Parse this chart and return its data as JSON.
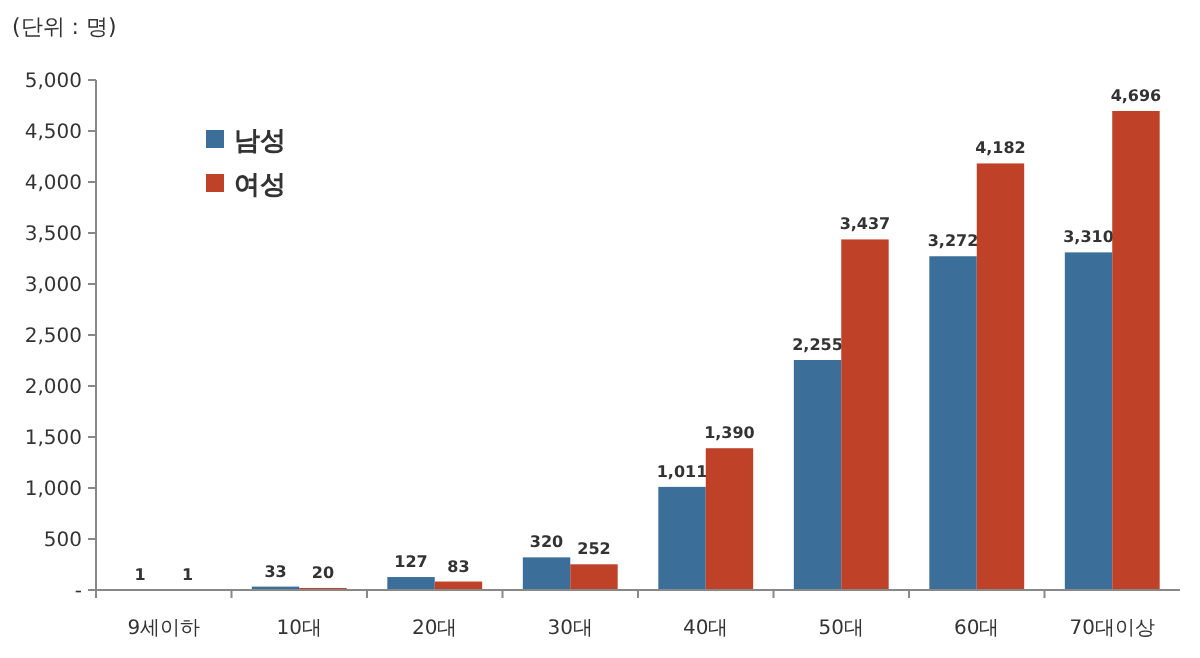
{
  "chart_data": {
    "type": "bar",
    "categories": [
      "9세이하",
      "10대",
      "20대",
      "30대",
      "40대",
      "50대",
      "60대",
      "70대이상"
    ],
    "series": [
      {
        "name": "남성",
        "color": "#3b6e98",
        "values": [
          1,
          33,
          127,
          320,
          1011,
          2255,
          3272,
          3310
        ],
        "value_labels": [
          "1",
          "33",
          "127",
          "320",
          "1,011",
          "2,255",
          "3,272",
          "3,310"
        ]
      },
      {
        "name": "여성",
        "color": "#be4128",
        "values": [
          1,
          20,
          83,
          252,
          1390,
          3437,
          4182,
          4696
        ],
        "value_labels": [
          "1",
          "20",
          "83",
          "252",
          "1,390",
          "3,437",
          "4,182",
          "4,696"
        ]
      }
    ],
    "ylim": [
      0,
      5000
    ],
    "yticks": [
      {
        "value": 0,
        "label": "-"
      },
      {
        "value": 500,
        "label": "500"
      },
      {
        "value": 1000,
        "label": "1,000"
      },
      {
        "value": 1500,
        "label": "1,500"
      },
      {
        "value": 2000,
        "label": "2,000"
      },
      {
        "value": 2500,
        "label": "2,500"
      },
      {
        "value": 3000,
        "label": "3,000"
      },
      {
        "value": 3500,
        "label": "3,500"
      },
      {
        "value": 4000,
        "label": "4,000"
      },
      {
        "value": 4500,
        "label": "4,500"
      },
      {
        "value": 5000,
        "label": "5,000"
      }
    ],
    "annotations": [
      "(단위 : 명)"
    ],
    "legend": "top left",
    "grid": false
  }
}
